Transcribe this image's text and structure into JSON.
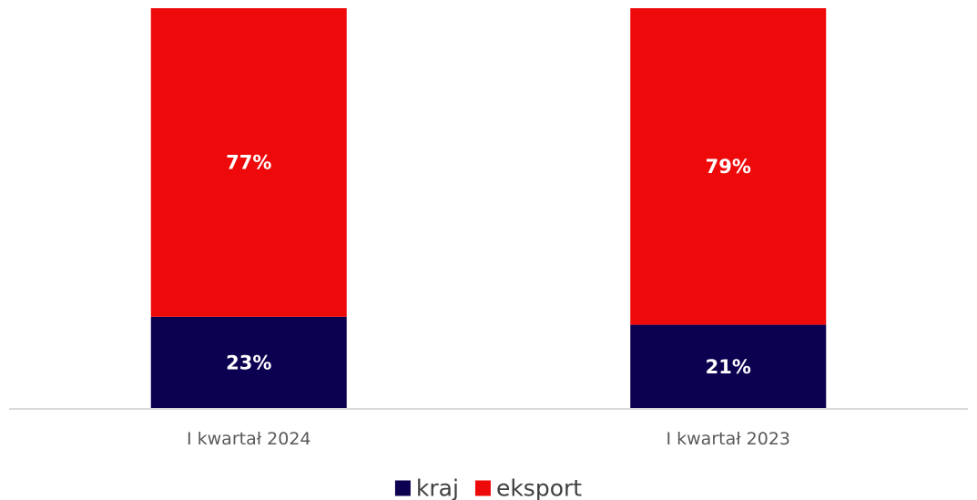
{
  "chart_data": {
    "type": "bar",
    "stacked": true,
    "percent": true,
    "categories": [
      "I kwartał 2024",
      "I kwartał 2023"
    ],
    "series": [
      {
        "name": "kraj",
        "values": [
          23,
          21
        ],
        "labels": [
          "23%",
          "21%"
        ],
        "color": "#0c0050"
      },
      {
        "name": "eksport",
        "values": [
          77,
          79
        ],
        "labels": [
          "77%",
          "79%"
        ],
        "color": "#ee0a0a"
      }
    ],
    "ylim": [
      0,
      100
    ],
    "grid": false,
    "legend": "bottom",
    "axis_color": "#d9d9d9"
  }
}
